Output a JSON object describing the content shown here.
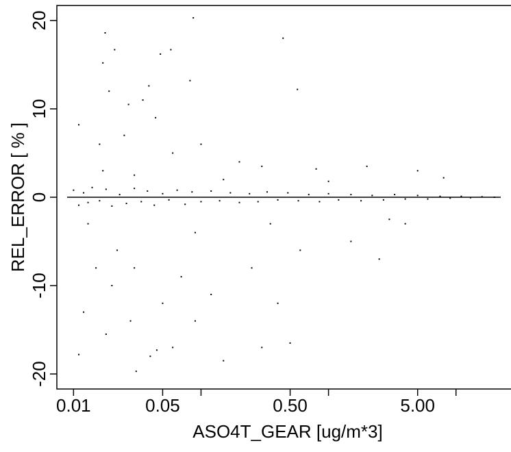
{
  "chart_data": {
    "type": "scatter",
    "x_label": "ASO4T_GEAR [ug/m*3]",
    "y_label": "REL_ERROR [ % ]",
    "x_log": true,
    "xlim": [
      0.0074,
      27
    ],
    "ylim": [
      -21.7,
      21.7
    ],
    "xticks": [
      0.01,
      0.05,
      {
        "value": 0.5,
        "label": "0.50"
      },
      {
        "value": 5,
        "label": "5.00"
      }
    ],
    "xminor_ticks": [
      0.1,
      1,
      10
    ],
    "yticks": [
      -20,
      -10,
      0,
      10,
      20
    ],
    "hline": 0,
    "color": "#000000",
    "series": [
      {
        "name": "ASO4T_GEAR",
        "x": [
          0.0177,
          0.087,
          0.44,
          0.017,
          0.021,
          0.048,
          0.058,
          0.039,
          0.019,
          0.57,
          0.082,
          0.011,
          0.027,
          0.035,
          0.044,
          0.016,
          0.025,
          0.06,
          0.1,
          0.2,
          0.3,
          0.8,
          2,
          5,
          8,
          0.013,
          0.015,
          0.02,
          0.03,
          0.05,
          0.07,
          0.12,
          0.25,
          0.4,
          0.6,
          1.5,
          2.5,
          0.012,
          0.018,
          0.028,
          0.04,
          0.045,
          0.06,
          0.09,
          0.15,
          0.3,
          0.5,
          0.031,
          0.011,
          0.022,
          0.09,
          0.35,
          0.017,
          0.03,
          0.15,
          1,
          3,
          4,
          0.01,
          0.011,
          0.012,
          0.013,
          0.014,
          0.016,
          0.018,
          0.02,
          0.023,
          0.026,
          0.03,
          0.034,
          0.038,
          0.043,
          0.05,
          0.056,
          0.065,
          0.075,
          0.085,
          0.1,
          0.12,
          0.14,
          0.17,
          0.2,
          0.24,
          0.28,
          0.33,
          0.4,
          0.48,
          0.58,
          0.7,
          0.85,
          1,
          1.2,
          1.5,
          1.8,
          2.2,
          2.7,
          3.3,
          4,
          5,
          6,
          7.5,
          9,
          11,
          13,
          16,
          20
        ],
        "values": [
          18.6,
          20.3,
          18,
          15.2,
          16.7,
          16.2,
          16.7,
          12.6,
          12,
          12.2,
          13.2,
          8.2,
          10.5,
          11,
          9,
          6,
          7,
          5,
          6,
          4,
          3.5,
          3.2,
          3.5,
          3,
          2.2,
          -3,
          -8,
          -10,
          -8,
          -12,
          -9,
          -11,
          -8,
          -12,
          -6,
          -5,
          -7,
          -13,
          -15.5,
          -14,
          -18,
          -17.3,
          -17,
          -14,
          -18.5,
          -17,
          -16.5,
          -19.7,
          -17.8,
          -6,
          -4,
          -3,
          3,
          2.5,
          2,
          1.8,
          -2.5,
          -3,
          0.8,
          -0.9,
          0.5,
          -0.6,
          1.1,
          -0.4,
          0.9,
          -1,
          0.3,
          -0.7,
          1,
          -0.5,
          0.7,
          -0.9,
          0.4,
          -0.3,
          0.8,
          -0.8,
          0.6,
          -0.5,
          0.7,
          -0.4,
          0.5,
          -0.6,
          0.4,
          -0.5,
          0.6,
          -0.3,
          0.5,
          -0.4,
          0.3,
          -0.5,
          0.4,
          -0.3,
          0.3,
          -0.4,
          0.2,
          -0.3,
          0.3,
          -0.2,
          0.2,
          -0.2,
          0.1,
          -0.1,
          0.1,
          -0.05,
          0.05,
          0
        ]
      }
    ]
  }
}
